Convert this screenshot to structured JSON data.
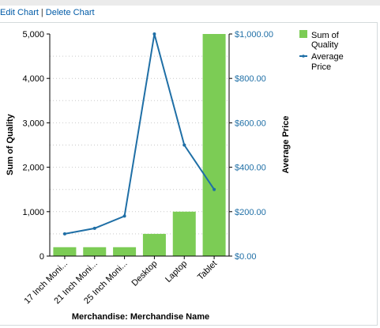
{
  "header": {
    "edit_label": "Edit Chart",
    "separator": "|",
    "delete_label": "Delete Chart"
  },
  "colors": {
    "bar": "#7ccc55",
    "line": "#1f6fa6",
    "right_axis_text": "#1f6fa6",
    "link": "#015ba7"
  },
  "chart_data": {
    "type": "bar",
    "combo_line": true,
    "title": "",
    "xlabel": "Merchandise: Merchandise Name",
    "ylabel": "Sum of Quality",
    "ylabel_right": "Average Price",
    "categories": [
      "17 Inch Moni...",
      "21 Inch Moni...",
      "25 Inch Moni...",
      "Desktop",
      "Laptop",
      "Tablet"
    ],
    "series": [
      {
        "name": "Sum of Quality",
        "type": "bar",
        "axis": "left",
        "values": [
          200,
          200,
          200,
          500,
          1000,
          5000
        ]
      },
      {
        "name": "Average Price",
        "type": "line",
        "axis": "right",
        "values": [
          100,
          125,
          180,
          1000,
          500,
          300
        ]
      }
    ],
    "ylim": [
      0,
      5000
    ],
    "yticks": [
      "0",
      "1,000",
      "2,000",
      "3,000",
      "4,000",
      "5,000"
    ],
    "ylim_right": [
      0,
      1000
    ],
    "yticks_right": [
      "$0.00",
      "$200.00",
      "$400.00",
      "$600.00",
      "$800.00",
      "$1,000.00"
    ],
    "legend": [
      "Sum of Quality",
      "Average Price"
    ],
    "legend_position": "top-right",
    "grid": true
  }
}
